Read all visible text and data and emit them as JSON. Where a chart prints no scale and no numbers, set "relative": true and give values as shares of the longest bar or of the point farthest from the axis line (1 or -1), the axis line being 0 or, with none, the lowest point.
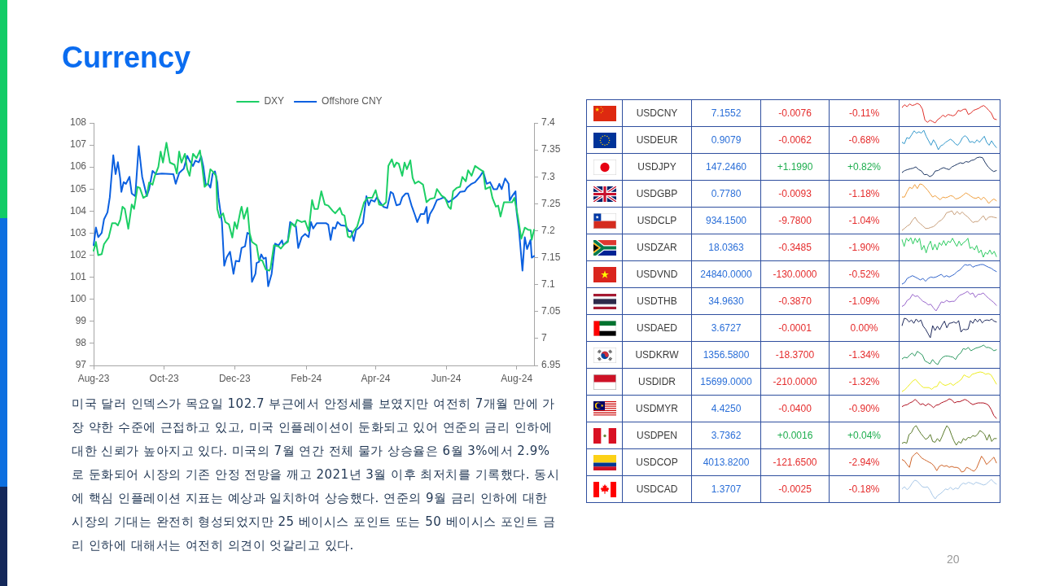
{
  "chart_data": [
    {
      "type": "line",
      "title": "Currency",
      "legend": "top",
      "xlim": [
        "2023-08-01",
        "2024-08-16"
      ],
      "xticks": [
        {
          "value": "2023-08-01",
          "label": "Aug-23"
        },
        {
          "value": "2023-10-01",
          "label": "Oct-23"
        },
        {
          "value": "2023-12-01",
          "label": "Dec-23"
        },
        {
          "value": "2024-02-01",
          "label": "Feb-24"
        },
        {
          "value": "2024-04-01",
          "label": "Apr-24"
        },
        {
          "value": "2024-06-01",
          "label": "Jun-24"
        },
        {
          "value": "2024-08-01",
          "label": "Aug-24"
        }
      ],
      "ylim": [
        97,
        108
      ],
      "yticks": [
        97,
        98,
        99,
        100,
        101,
        102,
        103,
        104,
        105,
        106,
        107,
        108
      ],
      "y2lim": [
        6.95,
        7.4
      ],
      "y2ticks": [
        6.95,
        7,
        7.05,
        7.1,
        7.15,
        7.2,
        7.25,
        7.3,
        7.35,
        7.4
      ],
      "series": [
        {
          "name": "DXY",
          "color": "#1ccf65",
          "x": [
            "2023-08-01",
            "2023-08-03",
            "2023-08-05",
            "2023-08-08",
            "2023-08-10",
            "2023-08-14",
            "2023-08-17",
            "2023-08-20",
            "2023-08-22",
            "2023-08-24",
            "2023-08-26",
            "2023-08-28",
            "2023-08-31",
            "2023-09-03",
            "2023-09-05",
            "2023-09-08",
            "2023-09-10",
            "2023-09-13",
            "2023-09-16",
            "2023-09-18",
            "2023-09-21",
            "2023-09-23",
            "2023-09-26",
            "2023-09-28",
            "2023-09-30",
            "2023-10-03",
            "2023-10-06",
            "2023-10-10",
            "2023-10-12",
            "2023-10-14",
            "2023-10-16",
            "2023-10-19",
            "2023-10-21",
            "2023-10-23",
            "2023-10-26",
            "2023-10-29",
            "2023-11-01",
            "2023-11-03",
            "2023-11-05",
            "2023-11-08",
            "2023-11-10",
            "2023-11-12",
            "2023-11-15",
            "2023-11-16",
            "2023-11-18",
            "2023-11-21",
            "2023-11-23",
            "2023-11-26",
            "2023-11-29",
            "2023-12-01",
            "2023-12-03",
            "2023-12-06",
            "2023-12-07",
            "2023-12-09",
            "2023-12-12",
            "2023-12-14",
            "2023-12-16",
            "2023-12-20",
            "2023-12-22",
            "2023-12-25",
            "2023-12-28",
            "2023-12-31",
            "2024-01-01",
            "2024-01-04",
            "2024-01-08",
            "2024-01-10",
            "2024-01-13",
            "2024-01-16",
            "2024-01-19",
            "2024-01-22",
            "2024-01-24",
            "2024-01-28",
            "2024-01-31",
            "2024-02-03",
            "2024-02-06",
            "2024-02-08",
            "2024-02-11",
            "2024-02-14",
            "2024-02-17",
            "2024-02-20",
            "2024-02-24",
            "2024-02-26",
            "2024-03-01",
            "2024-03-03",
            "2024-03-05",
            "2024-03-08",
            "2024-03-10",
            "2024-03-13",
            "2024-03-16",
            "2024-03-19",
            "2024-03-22",
            "2024-03-25",
            "2024-03-29",
            "2024-04-01",
            "2024-04-04",
            "2024-04-07",
            "2024-04-10",
            "2024-04-12",
            "2024-04-15",
            "2024-04-17",
            "2024-04-19",
            "2024-04-21",
            "2024-04-24",
            "2024-04-26",
            "2024-04-28",
            "2024-05-01",
            "2024-05-03",
            "2024-05-05",
            "2024-05-08",
            "2024-05-12",
            "2024-05-15",
            "2024-05-18",
            "2024-05-22",
            "2024-05-24",
            "2024-05-28",
            "2024-05-31",
            "2024-06-03",
            "2024-06-05",
            "2024-06-07",
            "2024-06-10",
            "2024-06-13",
            "2024-06-15",
            "2024-06-18",
            "2024-06-20",
            "2024-06-23",
            "2024-06-26",
            "2024-06-30",
            "2024-07-03",
            "2024-07-05",
            "2024-07-09",
            "2024-07-11",
            "2024-07-14",
            "2024-07-16",
            "2024-07-18",
            "2024-07-21",
            "2024-07-24",
            "2024-07-28",
            "2024-07-30",
            "2024-08-02",
            "2024-08-05",
            "2024-08-08",
            "2024-08-11",
            "2024-08-13",
            "2024-08-14",
            "2024-08-16"
          ],
          "values": [
            102.2,
            102.6,
            102.0,
            102.05,
            102.5,
            102.8,
            103.45,
            103.45,
            103.35,
            103.6,
            104.2,
            104.1,
            103.2,
            104.3,
            104.1,
            105.1,
            105.05,
            104.6,
            104.7,
            105.3,
            105.2,
            105.6,
            106.0,
            106.7,
            106.2,
            107.1,
            106.2,
            106.1,
            105.7,
            106.7,
            106.2,
            106.6,
            105.9,
            105.6,
            106.6,
            106.4,
            106.75,
            106.0,
            105.1,
            105.25,
            105.9,
            105.8,
            105.6,
            104.1,
            103.7,
            103.9,
            103.5,
            103.4,
            102.8,
            103.5,
            103.2,
            104.0,
            104.2,
            103.65,
            104.15,
            103.0,
            102.6,
            102.45,
            101.8,
            101.75,
            101.35,
            101.3,
            101.4,
            102.45,
            102.4,
            102.3,
            102.5,
            102.6,
            103.45,
            103.3,
            103.6,
            103.5,
            103.55,
            103.1,
            104.5,
            104.1,
            104.1,
            104.9,
            104.3,
            104.25,
            104.0,
            103.9,
            104.15,
            103.85,
            103.8,
            102.85,
            102.8,
            103.1,
            103.3,
            103.85,
            104.4,
            104.6,
            104.6,
            104.95,
            104.3,
            104.25,
            104.4,
            106.05,
            106.35,
            106.0,
            106.2,
            106.15,
            105.6,
            106.2,
            105.9,
            106.3,
            105.5,
            105.25,
            105.35,
            105.2,
            104.4,
            104.55,
            104.6,
            105.0,
            104.7,
            104.6,
            104.2,
            104.1,
            104.9,
            105.05,
            105.1,
            105.55,
            105.35,
            105.85,
            105.6,
            106.05,
            105.9,
            105.8,
            105.0,
            105.1,
            104.6,
            104.2,
            104.25,
            103.75,
            104.4,
            104.4,
            104.4,
            104.6,
            103.75,
            102.75,
            103.25,
            103.15,
            103.15,
            102.7,
            103.15
          ]
        },
        {
          "name": "Offshore CNY",
          "color": "#0b60e0",
          "axis": "y2",
          "x": [
            "2023-08-01",
            "2023-08-03",
            "2023-08-05",
            "2023-08-08",
            "2023-08-10",
            "2023-08-13",
            "2023-08-15",
            "2023-08-18",
            "2023-08-20",
            "2023-08-22",
            "2023-08-24",
            "2023-08-25",
            "2023-08-27",
            "2023-08-29",
            "2023-09-01",
            "2023-09-03",
            "2023-09-06",
            "2023-09-09",
            "2023-09-12",
            "2023-09-16",
            "2023-09-18",
            "2023-09-21",
            "2023-09-24",
            "2023-09-29",
            "2023-10-09",
            "2023-10-11",
            "2023-10-14",
            "2023-10-18",
            "2023-10-21",
            "2023-10-23",
            "2023-10-26",
            "2023-10-28",
            "2023-10-31",
            "2023-11-02",
            "2023-11-04",
            "2023-11-06",
            "2023-11-08",
            "2023-11-10",
            "2023-11-12",
            "2023-11-14",
            "2023-11-16",
            "2023-11-17",
            "2023-11-20",
            "2023-11-22",
            "2023-11-24",
            "2023-11-27",
            "2023-11-30",
            "2023-12-02",
            "2023-12-05",
            "2023-12-07",
            "2023-12-10",
            "2023-12-12",
            "2023-12-14",
            "2023-12-16",
            "2023-12-19",
            "2023-12-20",
            "2023-12-22",
            "2023-12-24",
            "2023-12-26",
            "2023-12-28",
            "2023-12-30",
            "2024-01-02",
            "2024-01-05",
            "2024-01-08",
            "2024-01-11",
            "2024-01-12",
            "2024-01-16",
            "2024-01-18",
            "2024-01-21",
            "2024-01-23",
            "2024-01-25",
            "2024-01-28",
            "2024-01-31",
            "2024-02-03",
            "2024-02-05",
            "2024-02-07",
            "2024-02-10",
            "2024-02-18",
            "2024-02-20",
            "2024-02-22",
            "2024-02-24",
            "2024-02-26",
            "2024-02-28",
            "2024-03-02",
            "2024-03-06",
            "2024-03-09",
            "2024-03-11",
            "2024-03-13",
            "2024-03-15",
            "2024-03-18",
            "2024-03-21",
            "2024-03-24",
            "2024-03-26",
            "2024-03-28",
            "2024-03-31",
            "2024-04-02",
            "2024-04-05",
            "2024-04-08",
            "2024-04-11",
            "2024-04-14",
            "2024-04-16",
            "2024-04-19",
            "2024-04-22",
            "2024-04-24",
            "2024-04-27",
            "2024-04-29",
            "2024-05-02",
            "2024-05-05",
            "2024-05-07",
            "2024-05-10",
            "2024-05-13",
            "2024-05-15",
            "2024-05-16",
            "2024-05-18",
            "2024-05-21",
            "2024-05-24",
            "2024-05-27",
            "2024-05-30",
            "2024-06-03",
            "2024-06-06",
            "2024-06-10",
            "2024-06-13",
            "2024-06-17",
            "2024-06-19",
            "2024-06-23",
            "2024-06-26",
            "2024-06-30",
            "2024-07-03",
            "2024-07-06",
            "2024-07-09",
            "2024-07-12",
            "2024-07-15",
            "2024-07-17",
            "2024-07-19",
            "2024-07-22",
            "2024-07-25",
            "2024-07-26",
            "2024-07-28",
            "2024-07-31",
            "2024-08-01",
            "2024-08-03",
            "2024-08-06",
            "2024-08-08",
            "2024-08-10",
            "2024-08-13",
            "2024-08-14",
            "2024-08-16"
          ],
          "values": [
            7.173,
            7.206,
            7.188,
            7.196,
            7.221,
            7.234,
            7.262,
            7.34,
            7.305,
            7.327,
            7.297,
            7.272,
            7.29,
            7.287,
            7.3,
            7.269,
            7.264,
            7.357,
            7.3,
            7.264,
            7.277,
            7.311,
            7.305,
            7.306,
            7.305,
            7.287,
            7.307,
            7.315,
            7.339,
            7.33,
            7.32,
            7.33,
            7.327,
            7.338,
            7.318,
            7.285,
            7.287,
            7.28,
            7.306,
            7.31,
            7.29,
            7.262,
            7.216,
            7.135,
            7.15,
            7.161,
            7.12,
            7.144,
            7.143,
            7.168,
            7.171,
            7.196,
            7.194,
            7.105,
            7.12,
            7.14,
            7.142,
            7.156,
            7.148,
            7.15,
            7.097,
            7.12,
            7.176,
            7.173,
            7.182,
            7.173,
            7.181,
            7.216,
            7.211,
            7.208,
            7.168,
            7.188,
            7.194,
            7.188,
            7.216,
            7.204,
            7.214,
            7.214,
            7.211,
            7.183,
            7.206,
            7.204,
            7.216,
            7.21,
            7.209,
            7.199,
            7.199,
            7.181,
            7.201,
            7.206,
            7.214,
            7.264,
            7.247,
            7.257,
            7.254,
            7.262,
            7.252,
            7.244,
            7.242,
            7.272,
            7.269,
            7.247,
            7.249,
            7.262,
            7.269,
            7.269,
            7.247,
            7.229,
            7.216,
            7.231,
            7.231,
            7.244,
            7.214,
            7.231,
            7.242,
            7.257,
            7.259,
            7.262,
            7.253,
            7.257,
            7.264,
            7.272,
            7.273,
            7.28,
            7.287,
            7.29,
            7.3,
            7.31,
            7.287,
            7.29,
            7.277,
            7.277,
            7.287,
            7.277,
            7.297,
            7.287,
            7.256,
            7.264,
            7.273,
            7.234,
            7.201,
            7.126,
            7.188,
            7.166,
            7.183,
            7.15,
            7.153
          ]
        }
      ],
      "annotations": [
        "미국 달러 인덱스가 목요일 102.7 부근에서 안정세를 보였지만 여전히 7개월 만에 가장 약한 수준에 근접하고 있고, 미국 인플레이션이 둔화되고 있어 연준의 금리 인하에 대한 신뢰가 높아지고 있다. 미국의 7월 연간 전체 물가 상승율은 6월 3%에서 2.9%로 둔화되어 시장의 기존 안정 전망을 깨고 2021년 3월 이후 최저치를 기록했다. 동시에 핵심 인플레이션 지표는 예상과 일치하여 상승했다. 연준의 9월 금리 인하에 대한 시장의 기대는 완전히 형성되었지만 25 베이시스 포인트 또는 50 베이시스 포인트 금리 인하에 대해서는 여전히 의견이 엇갈리고 있다.",
        "20"
      ]
    },
    {
      "type": "other",
      "categories": [
        "USDCNY",
        "USDEUR",
        "USDJPY",
        "USDGBP",
        "USDCLP",
        "USDZAR",
        "USDVND",
        "USDTHB",
        "USDAED",
        "USDKRW",
        "USDIDR",
        "USDMYR",
        "USDPEN",
        "USDCOP",
        "USDCAD"
      ],
      "series": [
        {
          "color": "#2b6fd8",
          "values": [
            7.1552,
            0.9079,
            147.246,
            0.778,
            934.15,
            18.0363,
            24840,
            34.963,
            3.6727,
            1356.58,
            15699,
            4.425,
            3.7362,
            4013.82,
            1.3707
          ],
          "value_labels": [
            "7.1552",
            "0.9079",
            "147.2460",
            "0.7780",
            "934.1500",
            "18.0363",
            "24840.0000",
            "34.9630",
            "3.6727",
            "1356.5800",
            "15699.0000",
            "4.4250",
            "3.7362",
            "4013.8200",
            "1.3707"
          ]
        },
        {
          "colors": [
            "#e52d2d",
            "#e52d2d",
            "#1fae4f",
            "#e52d2d",
            "#e52d2d",
            "#e52d2d",
            "#e52d2d",
            "#e52d2d",
            "#e52d2d",
            "#e52d2d",
            "#e52d2d",
            "#e52d2d",
            "#1fae4f",
            "#e52d2d",
            "#e52d2d"
          ],
          "values": [
            -0.0076,
            -0.0062,
            1.199,
            -0.0093,
            -9.78,
            -0.3485,
            -130,
            -0.387,
            -0.0001,
            -18.37,
            -210,
            -0.04,
            0.0016,
            -121.65,
            -0.0025
          ],
          "value_labels": [
            "-0.0076",
            "-0.0062",
            "+1.1990",
            "-0.0093",
            "-9.7800",
            "-0.3485",
            "-130.0000",
            "-0.3870",
            "-0.0001",
            "-18.3700",
            "-210.0000",
            "-0.0400",
            "+0.0016",
            "-121.6500",
            "-0.0025"
          ]
        },
        {
          "colors": [
            "#e52d2d",
            "#e52d2d",
            "#1fae4f",
            "#e52d2d",
            "#e52d2d",
            "#e52d2d",
            "#e52d2d",
            "#e52d2d",
            "#e52d2d",
            "#e52d2d",
            "#e52d2d",
            "#e52d2d",
            "#1fae4f",
            "#e52d2d",
            "#e52d2d"
          ],
          "values": [
            -0.11,
            -0.68,
            0.82,
            -1.18,
            -1.04,
            -1.9,
            -0.52,
            -1.09,
            0,
            -1.34,
            -1.32,
            -0.9,
            0.04,
            -2.94,
            -0.18
          ],
          "value_labels": [
            "-0.11%",
            "-0.68%",
            "+0.82%",
            "-1.18%",
            "-1.04%",
            "-1.90%",
            "-0.52%",
            "-1.09%",
            "0.00%",
            "-1.34%",
            "-1.32%",
            "-0.90%",
            "+0.04%",
            "-2.94%",
            "-0.18%"
          ]
        }
      ]
    },
    {
      "type": "line",
      "relative": true,
      "tick_labels": false,
      "color": "#e0302a",
      "categories": [
        null,
        null,
        null,
        null,
        null,
        null,
        null,
        null,
        null,
        null,
        null,
        null,
        null,
        null,
        null,
        null,
        null,
        null,
        null,
        null,
        null,
        null,
        null,
        null,
        null,
        null,
        null,
        null,
        null,
        null,
        null,
        null,
        null,
        null,
        null,
        null,
        null,
        null
      ],
      "values": [
        0.79,
        0.93,
        0.83,
        0.97,
        0.89,
        0.93,
        1,
        0.93,
        0.71,
        0.14,
        0.03,
        0.14,
        0.07,
        0,
        0.17,
        0.26,
        0.4,
        0.31,
        0.43,
        0.4,
        0.36,
        0.43,
        0.64,
        0.6,
        0.69,
        0.71,
        0.43,
        0.5,
        0.64,
        0.69,
        0.74,
        0.83,
        0.89,
        0.79,
        0.64,
        0.5,
        0.21,
        0.17
      ]
    },
    {
      "type": "line",
      "relative": true,
      "tick_labels": false,
      "color": "#3399cc",
      "categories": [
        null,
        null,
        null,
        null,
        null,
        null,
        null,
        null,
        null,
        null,
        null,
        null,
        null,
        null,
        null,
        null,
        null,
        null,
        null,
        null,
        null,
        null,
        null,
        null,
        null,
        null,
        null,
        null,
        null,
        null,
        null,
        null,
        null,
        null,
        null,
        null,
        null,
        null,
        null,
        null
      ],
      "values": [
        0.38,
        0.31,
        0.62,
        0.57,
        0.77,
        0.97,
        0.85,
        0.92,
        0.85,
        1,
        0.69,
        0.46,
        0.23,
        0.51,
        0.31,
        0,
        0.2,
        0.26,
        0.38,
        0.46,
        0.54,
        0.46,
        0.31,
        0.23,
        0.38,
        0.62,
        0.72,
        0.62,
        0.38,
        0.42,
        0.35,
        0.51,
        0.38,
        0.54,
        0.69,
        0.38,
        0.23,
        0.46,
        0.26,
        0.11
      ]
    },
    {
      "type": "line",
      "relative": true,
      "tick_labels": false,
      "color": "#1f3864",
      "categories": [
        null,
        null,
        null,
        null,
        null,
        null,
        null,
        null,
        null,
        null,
        null,
        null,
        null,
        null,
        null,
        null,
        null,
        null,
        null,
        null,
        null,
        null,
        null,
        null,
        null,
        null,
        null,
        null,
        null,
        null,
        null,
        null,
        null,
        null,
        null
      ],
      "values": [
        0.21,
        0.31,
        0.36,
        0.4,
        0.43,
        0.5,
        0.36,
        0.29,
        0.1,
        0.11,
        0,
        0.07,
        0.29,
        0.31,
        0.4,
        0.46,
        0.4,
        0.36,
        0.5,
        0.57,
        0.64,
        0.71,
        0.67,
        0.77,
        0.74,
        0.83,
        0.86,
        0.97,
        1,
        0.97,
        0.71,
        0.5,
        0.36,
        0.26,
        0.31
      ]
    },
    {
      "type": "line",
      "relative": true,
      "tick_labels": false,
      "color": "#f0a040",
      "categories": [
        null,
        null,
        null,
        null,
        null,
        null,
        null,
        null,
        null,
        null,
        null,
        null,
        null,
        null,
        null,
        null,
        null,
        null,
        null,
        null,
        null,
        null,
        null,
        null,
        null,
        null,
        null,
        null,
        null,
        null,
        null,
        null,
        null,
        null,
        null,
        null,
        null,
        null
      ],
      "values": [
        0.33,
        0.33,
        0.61,
        0.83,
        0.76,
        0.97,
        0.76,
        1,
        0.97,
        0.83,
        0.69,
        0.51,
        0.33,
        0.4,
        0.29,
        0.19,
        0.33,
        0.29,
        0.33,
        0.4,
        0.37,
        0.23,
        0.26,
        0.33,
        0.43,
        0.54,
        0.47,
        0.37,
        0.29,
        0.26,
        0.33,
        0.19,
        0.33,
        0.19,
        0,
        0.14,
        0.23,
        0.14
      ]
    },
    {
      "type": "line",
      "relative": true,
      "tick_labels": false,
      "color": "#c9a07c",
      "categories": [
        null,
        null,
        null,
        null,
        null,
        null,
        null,
        null,
        null,
        null,
        null,
        null,
        null,
        null,
        null,
        null,
        null,
        null,
        null,
        null,
        null,
        null,
        null,
        null,
        null,
        null,
        null,
        null,
        null,
        null,
        null,
        null,
        null,
        null,
        null,
        null,
        null
      ],
      "values": [
        0,
        0.1,
        0.22,
        0.3,
        0.52,
        0.67,
        0.45,
        0.34,
        0.22,
        0.1,
        0.1,
        0.15,
        0.19,
        0.3,
        0.45,
        0.52,
        0.67,
        0.9,
        0.94,
        1,
        0.79,
        0.97,
        0.82,
        0.94,
        0.79,
        0.7,
        0.55,
        0.4,
        0.45,
        0.45,
        0.6,
        0.75,
        0.52,
        0.67,
        0.7,
        0.67,
        0.64
      ]
    },
    {
      "type": "line",
      "relative": true,
      "tick_labels": false,
      "color": "#2fcc62",
      "categories": [
        null,
        null,
        null,
        null,
        null,
        null,
        null,
        null,
        null,
        null,
        null,
        null,
        null,
        null,
        null,
        null,
        null,
        null,
        null,
        null,
        null,
        null,
        null,
        null,
        null,
        null,
        null,
        null,
        null,
        null,
        null,
        null,
        null,
        null,
        null,
        null,
        null,
        null,
        null,
        null,
        null,
        null,
        null,
        null
      ],
      "values": [
        0.9,
        0.55,
        0.97,
        0.82,
        1,
        0.67,
        0.97,
        0.75,
        0.97,
        0.37,
        0.6,
        0.22,
        0.6,
        0.82,
        0.37,
        0.67,
        0.37,
        0.75,
        0.6,
        0.85,
        0.6,
        0.82,
        0.75,
        0.97,
        0.75,
        0.55,
        0.82,
        0.6,
        0.75,
        0.82,
        0.97,
        0.45,
        0.52,
        0.37,
        0.6,
        0.22,
        0.37,
        0,
        0.25,
        0.15,
        0.37,
        0.15,
        0.3,
        0.03
      ]
    },
    {
      "type": "line",
      "relative": true,
      "tick_labels": false,
      "color": "#3366cc",
      "categories": [
        null,
        null,
        null,
        null,
        null,
        null,
        null,
        null,
        null,
        null,
        null,
        null,
        null,
        null,
        null,
        null,
        null,
        null,
        null,
        null,
        null,
        null,
        null,
        null,
        null,
        null,
        null,
        null,
        null,
        null,
        null,
        null,
        null,
        null,
        null,
        null,
        null
      ],
      "values": [
        0,
        0.07,
        0.29,
        0.36,
        0.43,
        0.36,
        0.29,
        0.21,
        0.29,
        0.14,
        0.29,
        0.36,
        0.33,
        0.36,
        0.43,
        0.5,
        0.36,
        0.43,
        0.36,
        0.43,
        0.5,
        0.64,
        0.71,
        0.86,
        1,
        0.96,
        1,
        0.86,
        0.93,
        0.96,
        1,
        1,
        0.93,
        0.86,
        0.81,
        0.71,
        0.64
      ]
    },
    {
      "type": "line",
      "relative": true,
      "tick_labels": false,
      "color": "#9966cc",
      "categories": [
        null,
        null,
        null,
        null,
        null,
        null,
        null,
        null,
        null,
        null,
        null,
        null,
        null,
        null,
        null,
        null,
        null,
        null,
        null,
        null,
        null,
        null,
        null,
        null,
        null,
        null,
        null,
        null,
        null,
        null,
        null,
        null,
        null,
        null,
        null,
        null,
        null
      ],
      "values": [
        0.23,
        0.31,
        0.54,
        0.62,
        0.85,
        0.74,
        0.77,
        0.62,
        0.49,
        0.43,
        0.31,
        0.34,
        0.15,
        0,
        0.23,
        0.46,
        0.43,
        0.54,
        0.46,
        0.49,
        0.49,
        0.65,
        0.8,
        0.85,
        0.92,
        1,
        0.85,
        0.92,
        0.69,
        0.85,
        0.85,
        0.92,
        0.77,
        0.65,
        0.54,
        0.43,
        0.28
      ]
    },
    {
      "type": "line",
      "relative": true,
      "tick_labels": false,
      "color": "#1f2a5c",
      "categories": [
        null,
        null,
        null,
        null,
        null,
        null,
        null,
        null,
        null,
        null,
        null,
        null,
        null,
        null,
        null,
        null,
        null,
        null,
        null,
        null,
        null,
        null,
        null,
        null,
        null,
        null,
        null,
        null,
        null,
        null,
        null,
        null,
        null,
        null,
        null,
        null,
        null,
        null,
        null,
        null,
        null
      ],
      "values": [
        0.62,
        1,
        0.96,
        0.81,
        0.91,
        0.74,
        0.96,
        0.81,
        0.91,
        0.59,
        0.44,
        0.22,
        0,
        0.62,
        0.37,
        0.59,
        0.41,
        0.66,
        0.85,
        0.51,
        0.74,
        0.76,
        0.81,
        0.74,
        0.88,
        0.29,
        0.44,
        0.41,
        0.44,
        0.88,
        0.74,
        0.96,
        0.81,
        0.96,
        0.76,
        0.88,
        0.91,
        0.88,
        0.96,
        0.85,
        0.81
      ]
    },
    {
      "type": "line",
      "relative": true,
      "tick_labels": false,
      "color": "#2e9a62",
      "categories": [
        null,
        null,
        null,
        null,
        null,
        null,
        null,
        null,
        null,
        null,
        null,
        null,
        null,
        null,
        null,
        null,
        null,
        null,
        null,
        null,
        null,
        null,
        null,
        null,
        null,
        null,
        null,
        null,
        null,
        null,
        null,
        null,
        null,
        null,
        null,
        null,
        null,
        null
      ],
      "values": [
        0.29,
        0.38,
        0.34,
        0.49,
        0.59,
        0.44,
        0.68,
        0.59,
        0.49,
        0.19,
        0.12,
        0.04,
        0.26,
        0.09,
        0,
        0.24,
        0.38,
        0.44,
        0.44,
        0.41,
        0.38,
        0.26,
        0.49,
        0.59,
        0.82,
        0.78,
        0.88,
        0.71,
        0.78,
        0.85,
        0.88,
        0.93,
        1,
        0.88,
        0.88,
        0.82,
        0.71,
        0.76
      ]
    },
    {
      "type": "line",
      "relative": true,
      "tick_labels": false,
      "color": "#eeee22",
      "categories": [
        null,
        null,
        null,
        null,
        null,
        null,
        null,
        null,
        null,
        null,
        null,
        null,
        null,
        null,
        null,
        null,
        null,
        null,
        null,
        null,
        null,
        null,
        null,
        null,
        null,
        null,
        null,
        null,
        null,
        null,
        null,
        null,
        null,
        null,
        null,
        null
      ],
      "values": [
        0,
        0.08,
        0.23,
        0.38,
        0.54,
        0.62,
        0.46,
        0.31,
        0.2,
        0.2,
        0.2,
        0.11,
        0.23,
        0.26,
        0.51,
        0.38,
        0.31,
        0.35,
        0.42,
        0.31,
        0.42,
        0.51,
        0.62,
        0.85,
        0.77,
        0.72,
        0.88,
        0.92,
        0.97,
        1,
        0.97,
        0.88,
        0.92,
        0.85,
        0.62,
        0.38
      ]
    },
    {
      "type": "line",
      "relative": true,
      "tick_labels": false,
      "color": "#b01020",
      "categories": [
        null,
        null,
        null,
        null,
        null,
        null,
        null,
        null,
        null,
        null,
        null,
        null,
        null,
        null,
        null,
        null,
        null,
        null,
        null,
        null,
        null,
        null,
        null,
        null,
        null,
        null,
        null,
        null,
        null,
        null,
        null,
        null,
        null,
        null,
        null,
        null,
        null
      ],
      "values": [
        0.6,
        0.67,
        0.7,
        0.79,
        0.85,
        0.97,
        0.85,
        0.7,
        0.75,
        0.64,
        0.75,
        0.67,
        0.55,
        0.67,
        0.7,
        0.79,
        0.85,
        0.9,
        1,
        0.94,
        0.79,
        0.85,
        0.85,
        0.91,
        0.97,
        0.9,
        0.79,
        0.7,
        0.75,
        0.79,
        0.79,
        0.79,
        0.75,
        0.67,
        0.45,
        0.15,
        0
      ]
    },
    {
      "type": "line",
      "relative": true,
      "tick_labels": false,
      "color": "#5b7b2c",
      "categories": [
        null,
        null,
        null,
        null,
        null,
        null,
        null,
        null,
        null,
        null,
        null,
        null,
        null,
        null,
        null,
        null,
        null,
        null,
        null,
        null,
        null,
        null,
        null,
        null,
        null,
        null,
        null,
        null,
        null,
        null,
        null,
        null,
        null,
        null,
        null,
        null,
        null,
        null,
        null,
        null,
        null
      ],
      "values": [
        0.1,
        0.15,
        0.1,
        0.55,
        0.64,
        0.9,
        1,
        0.79,
        0.6,
        0.45,
        0.3,
        0.37,
        0.55,
        0.19,
        0.15,
        0.34,
        0.19,
        0.45,
        0.75,
        1,
        0.85,
        0.52,
        0.22,
        0,
        0.19,
        0.1,
        0.34,
        0.25,
        0.4,
        0.37,
        0.49,
        0.45,
        0.55,
        0.75,
        0.67,
        0.55,
        0.25,
        0.55,
        0.19,
        0.34,
        0.34
      ]
    },
    {
      "type": "line",
      "relative": true,
      "tick_labels": false,
      "color": "#d0652a",
      "categories": [
        null,
        null,
        null,
        null,
        null,
        null,
        null,
        null,
        null,
        null,
        null,
        null,
        null,
        null,
        null,
        null,
        null,
        null,
        null,
        null,
        null,
        null,
        null,
        null,
        null,
        null,
        null,
        null,
        null,
        null,
        null,
        null,
        null,
        null,
        null,
        null,
        null,
        null,
        null
      ],
      "values": [
        0.64,
        0.57,
        0.39,
        0.24,
        0.76,
        0.9,
        1,
        0.86,
        0.71,
        0.64,
        0.57,
        0.5,
        0.43,
        0.29,
        0.07,
        0.29,
        0.36,
        0.29,
        0.33,
        0.24,
        0.29,
        0.24,
        0.24,
        0.19,
        0,
        0.04,
        0.24,
        0.19,
        0.1,
        0.04,
        0.19,
        0.5,
        0.81,
        0.64,
        0.39,
        0.5,
        0.64,
        0.76,
        0.47
      ]
    },
    {
      "type": "line",
      "relative": true,
      "tick_labels": false,
      "color": "#a8c8e8",
      "categories": [
        null,
        null,
        null,
        null,
        null,
        null,
        null,
        null,
        null,
        null,
        null,
        null,
        null,
        null,
        null,
        null,
        null,
        null,
        null,
        null,
        null,
        null,
        null,
        null,
        null,
        null,
        null,
        null,
        null,
        null,
        null,
        null,
        null,
        null,
        null,
        null,
        null,
        null
      ],
      "values": [
        0.51,
        0.62,
        0.47,
        0.59,
        0.81,
        0.96,
        0.91,
        0.76,
        0.62,
        0.59,
        0.62,
        0.44,
        0.18,
        0,
        0.18,
        0.26,
        0.37,
        0.51,
        0.47,
        0.59,
        0.47,
        0.56,
        0.51,
        0.71,
        0.81,
        0.76,
        0.85,
        0.81,
        0.74,
        0.85,
        0.81,
        0.76,
        0.71,
        0.76,
        0.88,
        1,
        0.85,
        0.76
      ]
    }
  ]
}
